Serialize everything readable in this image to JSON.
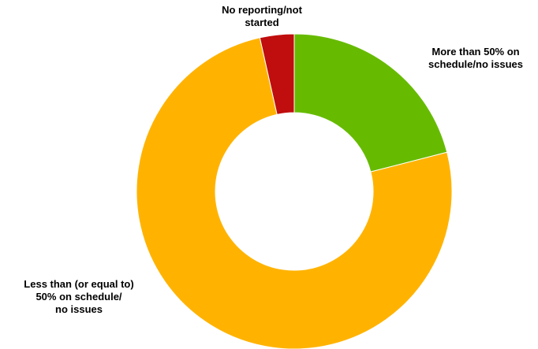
{
  "chart_data": {
    "type": "pie",
    "donut": true,
    "categories": [
      "More than 50% on schedule/no issues",
      "Less than (or equal to) 50% on schedule/ no issues",
      "No reporting/not started"
    ],
    "values": [
      21,
      75.5,
      3.5
    ],
    "colors": [
      "#66bb00",
      "#ffb300",
      "#c00d0d"
    ],
    "legend": "none",
    "labels": [
      {
        "line1": "More than 50% on",
        "line2": "schedule/no issues",
        "line3": ""
      },
      {
        "line1": "Less than (or equal to)",
        "line2": "50% on schedule/",
        "line3": "no issues"
      },
      {
        "line1": "No reporting/not",
        "line2": "started",
        "line3": ""
      }
    ]
  }
}
